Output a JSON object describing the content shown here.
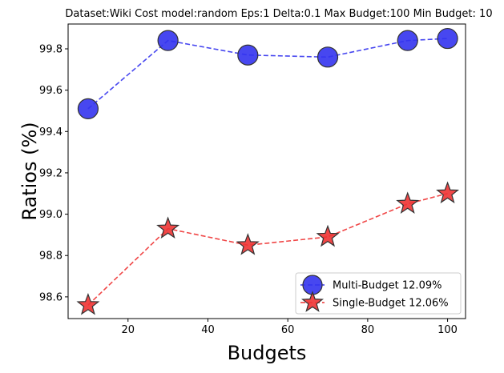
{
  "chart_data": {
    "type": "line",
    "title": "Dataset:Wiki Cost model:random Eps:1 Delta:0.1 Max Budget:100 Min Budget: 10",
    "xlabel": "Budgets",
    "ylabel": "Ratios (%)",
    "x": [
      10,
      30,
      50,
      70,
      90,
      100
    ],
    "xlim": [
      5,
      104.5
    ],
    "ylim": [
      98.495,
      99.92
    ],
    "xticks": [
      20,
      40,
      60,
      80,
      100
    ],
    "yticks": [
      98.6,
      98.8,
      99.0,
      99.2,
      99.4,
      99.6,
      99.8
    ],
    "xtick_labels": [
      "20",
      "40",
      "60",
      "80",
      "100"
    ],
    "ytick_labels": [
      "98.6",
      "98.8",
      "99.0",
      "99.2",
      "99.4",
      "99.6",
      "99.8"
    ],
    "grid": false,
    "legend_position": "lower-right",
    "series": [
      {
        "name": "Multi-Budget 12.09%",
        "values": [
          99.51,
          99.84,
          99.77,
          99.76,
          99.84,
          99.85
        ],
        "color": "#3333ee",
        "marker": "circle",
        "line_style": "dashed"
      },
      {
        "name": "Single-Budget 12.06%",
        "values": [
          98.56,
          98.93,
          98.85,
          98.89,
          99.05,
          99.1
        ],
        "color": "#ee3333",
        "marker": "star",
        "line_style": "dashed"
      }
    ]
  }
}
